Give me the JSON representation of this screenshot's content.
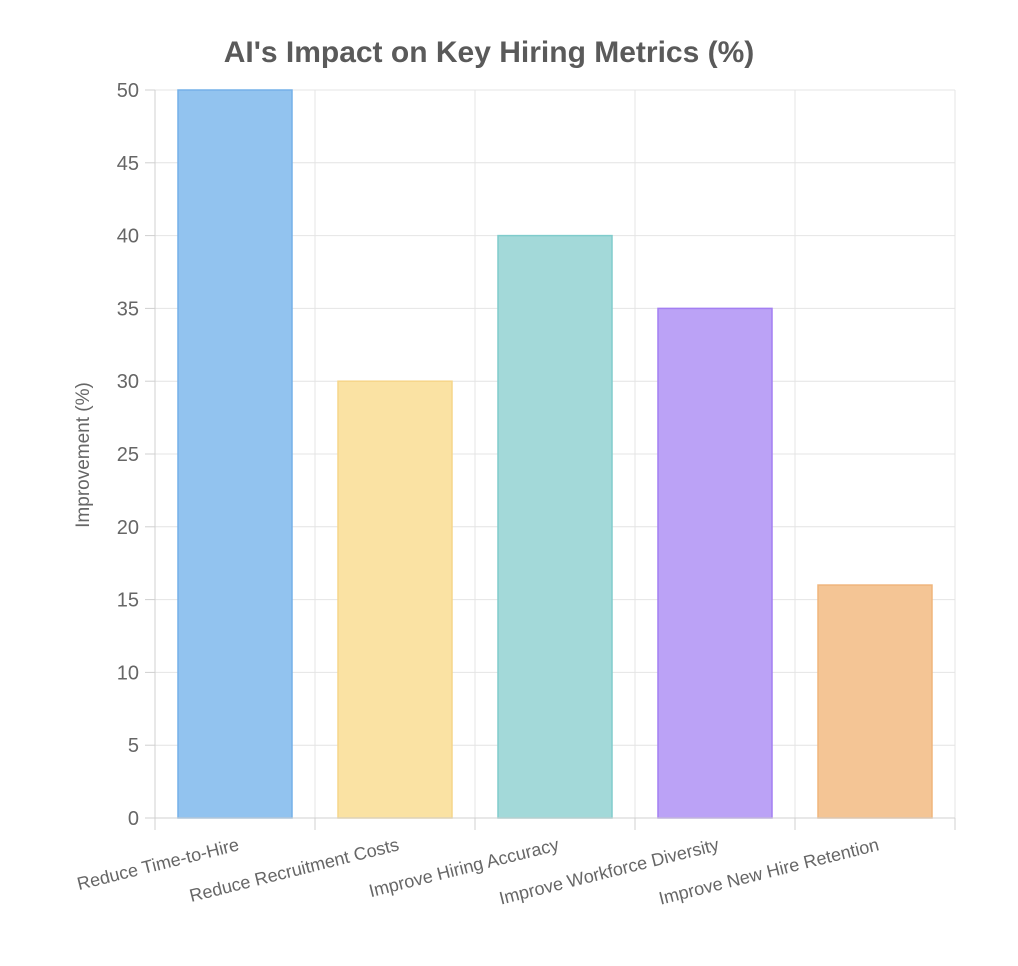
{
  "chart_data": {
    "type": "bar",
    "title": "AI's Impact on Key Hiring Metrics (%)",
    "xlabel": "",
    "ylabel": "Improvement (%)",
    "ylim": [
      0,
      50
    ],
    "y_ticks": [
      0,
      5,
      10,
      15,
      20,
      25,
      30,
      35,
      40,
      45,
      50
    ],
    "grid": true,
    "legend": "none",
    "categories": [
      "Reduce Time-to-Hire",
      "Reduce Recruitment Costs",
      "Improve Hiring Accuracy",
      "Improve Workforce Diversity",
      "Improve New Hire Retention"
    ],
    "values": [
      50,
      30,
      40,
      35,
      16
    ],
    "colors": {
      "fills": [
        "#92c3ef",
        "#fae2a3",
        "#a3d9d9",
        "#bba2f6",
        "#f4c595"
      ],
      "borders": [
        "#74b0e8",
        "#f6d68a",
        "#80cccc",
        "#a37ff2",
        "#f0b57c"
      ]
    }
  }
}
